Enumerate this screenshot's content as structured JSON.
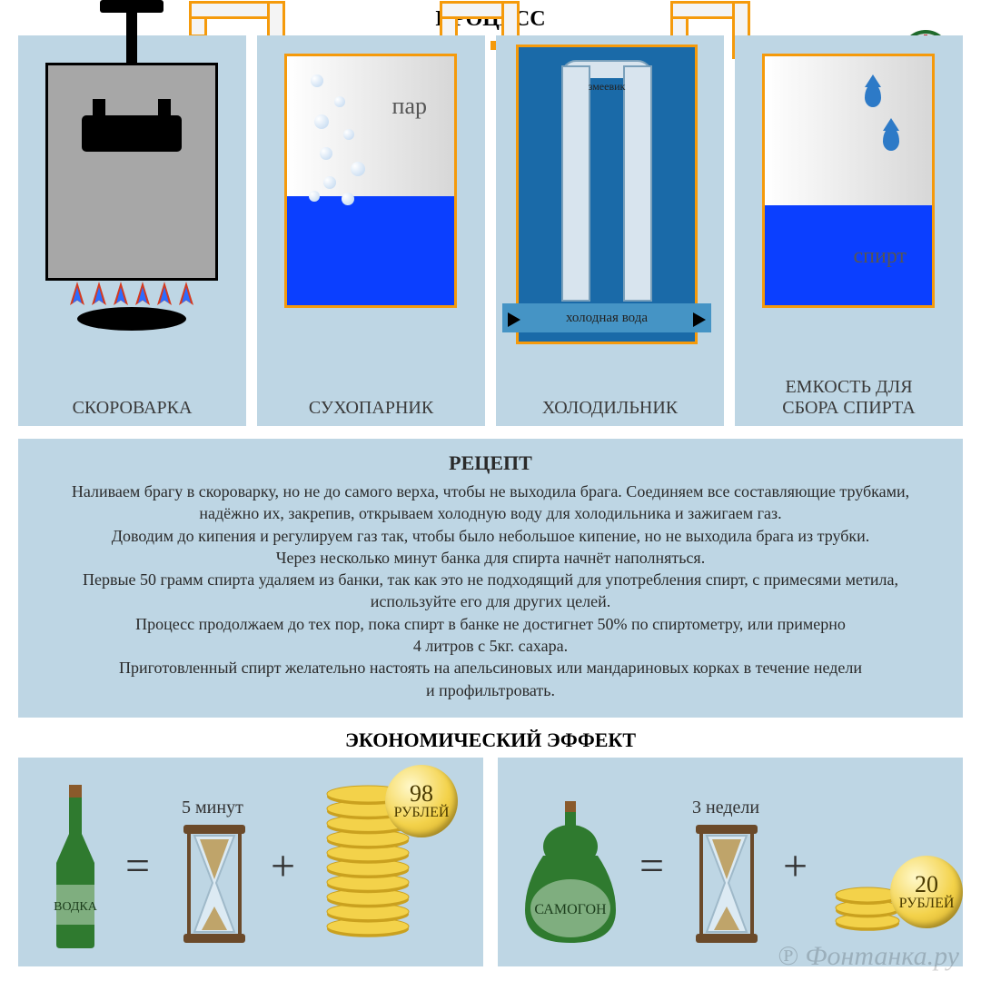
{
  "colors": {
    "panel_bg": "#bed6e4",
    "orange": "#f59a0b",
    "blue_liquid": "#0b3fff",
    "cond_blue": "#1a6aa8",
    "coin": "#f3d24a",
    "bottle_green": "#2f7a2f",
    "text": "#2a2a2a"
  },
  "process": {
    "title": "ПРОЦЕСС",
    "panels": [
      {
        "label": "СКОРОВАРКА"
      },
      {
        "label": "СУХОПАРНИК",
        "steam_label": "пар"
      },
      {
        "label": "ХОЛОДИЛЬНИК",
        "coil_label": "змеевик",
        "cold_water": "холодная вода"
      },
      {
        "label": "ЕМКОСТЬ ДЛЯ СБОРА СПИРТА",
        "spirit_label": "спирт"
      }
    ]
  },
  "recipe": {
    "title": "РЕЦЕПТ",
    "lines": [
      "Наливаем брагу в скороварку, но не до самого верха, чтобы не выходила брага. Соединяем все составляющие трубками,",
      "надёжно их, закрепив, открываем холодную воду для холодильника и зажигаем газ.",
      "Доводим до кипения и регулируем газ так, чтобы было небольшое кипение, но не выходила брага из трубки.",
      "Через несколько минут банка для спирта начнёт наполняться.",
      "Первые 50 грамм спирта удаляем из банки, так как это не подходящий для употребления спирт, с примесями метила,",
      "используйте его для других целей.",
      "Процесс продолжаем до тех пор, пока спирт в банке не достигнет 50% по спиртометру, или примерно",
      "4 литров с 5кг. сахара.",
      "Приготовленный спирт желательно настоять на апельсиновых или мандариновых корках в течение недели",
      "и профильтровать."
    ]
  },
  "economic": {
    "title": "ЭКОНОМИЧЕСКИЙ ЭФФЕКТ",
    "left": {
      "bottle_label": "ВОДКА",
      "time": "5 минут",
      "price_value": "98",
      "price_unit": "РУБЛЕЙ",
      "coin_count": 10
    },
    "right": {
      "bottle_label": "САМОГОН",
      "time": "3 недели",
      "price_value": "20",
      "price_unit": "РУБЛЕЙ",
      "coin_count": 3
    }
  },
  "watermark": "Фонтанка.ру"
}
